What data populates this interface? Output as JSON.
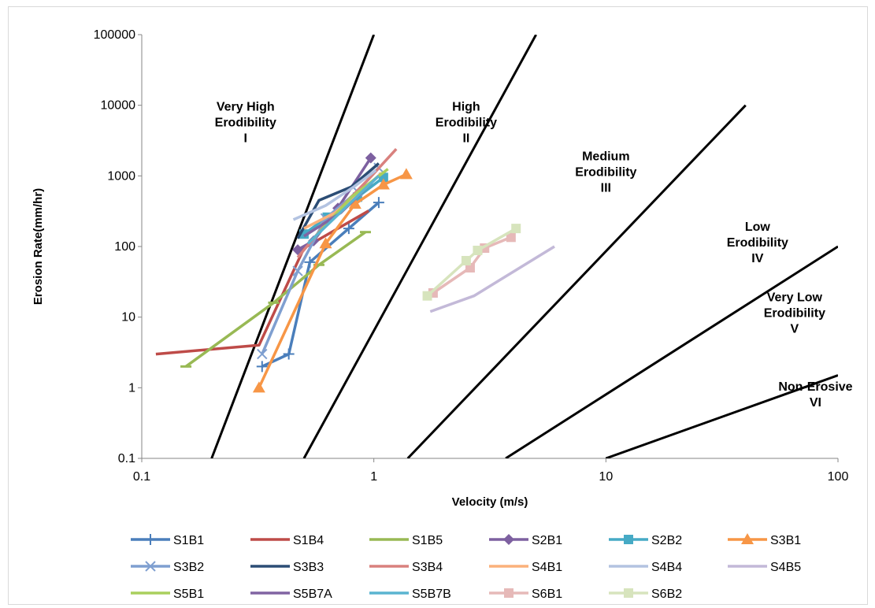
{
  "chart_data": {
    "type": "line",
    "title": "",
    "xlabel": "Velocity (m/s)",
    "ylabel": "Erosion Rate(mm/hr)",
    "xscale": "log",
    "yscale": "log",
    "xlim": [
      0.1,
      100
    ],
    "ylim": [
      0.1,
      100000
    ],
    "xticks": [
      "0.1",
      "1",
      "10",
      "100"
    ],
    "yticks": [
      "0.1",
      "1",
      "10",
      "100",
      "1000",
      "10000",
      "100000"
    ],
    "grid": false,
    "legend_position": "bottom",
    "zone_boundaries": [
      {
        "points": [
          [
            0.2,
            0.1
          ],
          [
            1.0,
            100000
          ]
        ]
      },
      {
        "points": [
          [
            0.5,
            0.1
          ],
          [
            5.0,
            100000
          ]
        ]
      },
      {
        "points": [
          [
            1.4,
            0.1
          ],
          [
            40,
            10000
          ]
        ]
      },
      {
        "points": [
          [
            3.7,
            0.1
          ],
          [
            100,
            100
          ]
        ]
      },
      {
        "points": [
          [
            10,
            0.1
          ],
          [
            100,
            1.5
          ]
        ]
      }
    ],
    "zone_labels": [
      {
        "lines": [
          "Very High",
          "Erodibility",
          "I"
        ],
        "x": 0.28,
        "y": 5000
      },
      {
        "lines": [
          "High",
          "Erodibility",
          "II"
        ],
        "x": 2.5,
        "y": 5000
      },
      {
        "lines": [
          "Medium",
          "Erodibility",
          "III"
        ],
        "x": 10,
        "y": 1000
      },
      {
        "lines": [
          "Low",
          "Erodibility",
          "IV"
        ],
        "x": 45,
        "y": 100
      },
      {
        "lines": [
          "Very Low",
          "Erodibility",
          "V"
        ],
        "x": 65,
        "y": 10
      },
      {
        "lines": [
          "Non-Erosive",
          "VI"
        ],
        "x": 80,
        "y": 0.7
      }
    ],
    "series": [
      {
        "name": "S1B1",
        "color": "#4a7ebb",
        "marker": "plus",
        "x": [
          0.33,
          0.43,
          0.53,
          0.78,
          1.05
        ],
        "y": [
          2,
          3,
          60,
          180,
          420
        ]
      },
      {
        "name": "S1B4",
        "color": "#be4b48",
        "marker": "none",
        "x": [
          0.115,
          0.32,
          0.5,
          0.7,
          0.95
        ],
        "y": [
          3,
          4,
          95,
          180,
          320
        ]
      },
      {
        "name": "S1B5",
        "color": "#98b954",
        "marker": "dash",
        "x": [
          0.155,
          0.37,
          0.58,
          0.92
        ],
        "y": [
          2,
          16,
          55,
          160
        ]
      },
      {
        "name": "S2B1",
        "color": "#7d60a0",
        "marker": "diamond",
        "x": [
          0.47,
          0.55,
          0.7,
          0.97
        ],
        "y": [
          90,
          120,
          350,
          1800
        ]
      },
      {
        "name": "S2B2",
        "color": "#46aac5",
        "marker": "square",
        "x": [
          0.5,
          0.63,
          0.85,
          1.1
        ],
        "y": [
          150,
          260,
          500,
          950
        ]
      },
      {
        "name": "S3B1",
        "color": "#f79646",
        "marker": "triangle",
        "x": [
          0.32,
          0.62,
          0.83,
          1.1,
          1.38
        ],
        "y": [
          1,
          110,
          400,
          750,
          1050
        ]
      },
      {
        "name": "S3B2",
        "color": "#7f9fd0",
        "marker": "x",
        "x": [
          0.33,
          0.47,
          0.62,
          0.85,
          1.05
        ],
        "y": [
          3,
          45,
          250,
          600,
          1300
        ]
      },
      {
        "name": "S3B3",
        "color": "#2c4d75",
        "marker": "none",
        "x": [
          0.47,
          0.58,
          0.8,
          1.05
        ],
        "y": [
          130,
          450,
          700,
          1500
        ]
      },
      {
        "name": "S3B4",
        "color": "#d9817e",
        "marker": "none",
        "x": [
          0.47,
          0.65,
          0.95,
          1.25
        ],
        "y": [
          70,
          250,
          900,
          2400
        ]
      },
      {
        "name": "S4B1",
        "color": "#fbb17b",
        "marker": "none",
        "x": [
          0.5,
          0.68,
          0.88,
          1.08
        ],
        "y": [
          180,
          300,
          600,
          1100
        ]
      },
      {
        "name": "S4B4",
        "color": "#b3c3e1",
        "marker": "none",
        "x": [
          0.45,
          0.62,
          0.82,
          1.02
        ],
        "y": [
          240,
          380,
          700,
          1200
        ]
      },
      {
        "name": "S4B5",
        "color": "#c3b9d8",
        "marker": "none",
        "x": [
          1.75,
          2.7,
          6.0
        ],
        "y": [
          12,
          20,
          100
        ]
      },
      {
        "name": "S5B1",
        "color": "#a9cf5d",
        "marker": "none",
        "x": [
          0.55,
          0.8,
          1.15
        ],
        "y": [
          130,
          500,
          1250
        ]
      },
      {
        "name": "S5B7A",
        "color": "#8064a2",
        "marker": "none",
        "x": [
          0.5,
          0.72,
          0.98
        ],
        "y": [
          140,
          300,
          800
        ]
      },
      {
        "name": "S5B7B",
        "color": "#5ab4d0",
        "marker": "none",
        "x": [
          0.52,
          0.75,
          1.05
        ],
        "y": [
          110,
          350,
          1000
        ]
      },
      {
        "name": "S6B1",
        "color": "#e6b9b8",
        "marker": "square",
        "x": [
          1.8,
          2.6,
          3.0,
          3.9
        ],
        "y": [
          22,
          50,
          95,
          135
        ]
      },
      {
        "name": "S6B2",
        "color": "#d7e4bd",
        "marker": "square",
        "x": [
          1.7,
          2.5,
          2.8,
          4.1
        ],
        "y": [
          20,
          63,
          88,
          180
        ]
      }
    ]
  }
}
